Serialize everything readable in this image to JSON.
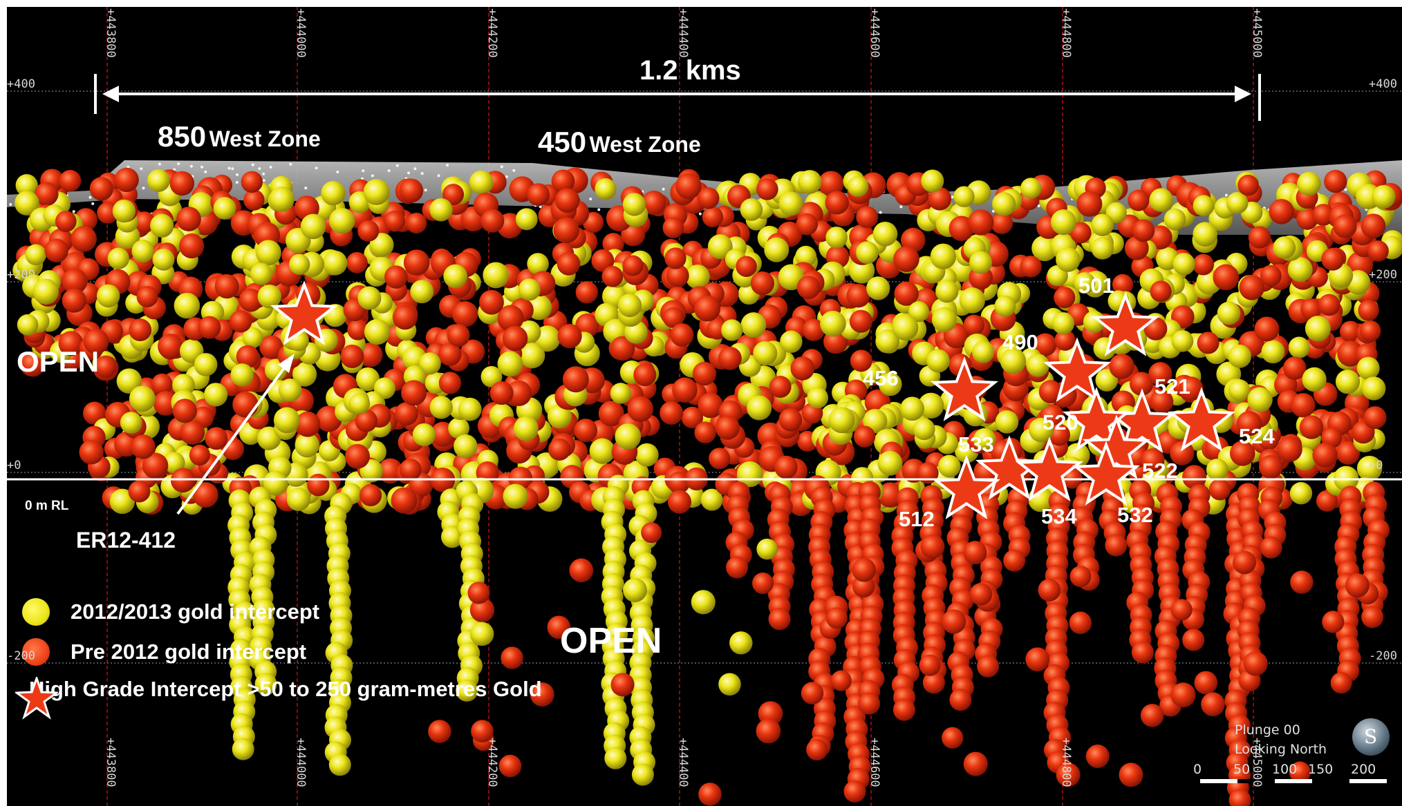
{
  "span": {
    "label": "1.2 kms"
  },
  "zones": [
    {
      "number": "850",
      "name": "West Zone"
    },
    {
      "number": "450",
      "name": "West Zone"
    }
  ],
  "open_labels": [
    "OPEN",
    "OPEN"
  ],
  "rl_label": "0 m RL",
  "hole_callout": "ER12-412",
  "easting_labels": [
    "+443800",
    "+444000",
    "+444200",
    "+444400",
    "+444600",
    "+444800",
    "+445000"
  ],
  "rl_grid_labels": [
    "+400",
    "+200",
    "+0",
    "-200"
  ],
  "high_grade_holes": [
    "501",
    "490",
    "456",
    "521",
    "520",
    "524",
    "533",
    "522",
    "512",
    "534",
    "532"
  ],
  "legend": [
    {
      "label": "2012/2013 gold intercept",
      "color": "#f2ee1a",
      "symbol": "yellow-circle"
    },
    {
      "label": "Pre 2012 gold intercept",
      "color": "#f0421a",
      "symbol": "red-circle"
    },
    {
      "label": "High Grade Intercept >50 to 250 gram-metres Gold",
      "color": "#ec3a17",
      "symbol": "red-star-icon"
    }
  ],
  "view_info": {
    "plunge": "Plunge 00",
    "looking": "Looking North"
  },
  "scale_bar": {
    "ticks": [
      "0",
      "50",
      "100",
      "150",
      "200"
    ]
  },
  "compass": {
    "letter": "S"
  },
  "colors": {
    "background": "#000000",
    "pre2012": "#f0421a",
    "recent": "#f2ee1a",
    "star": "#ec3a17",
    "grid": "#c01010"
  }
}
